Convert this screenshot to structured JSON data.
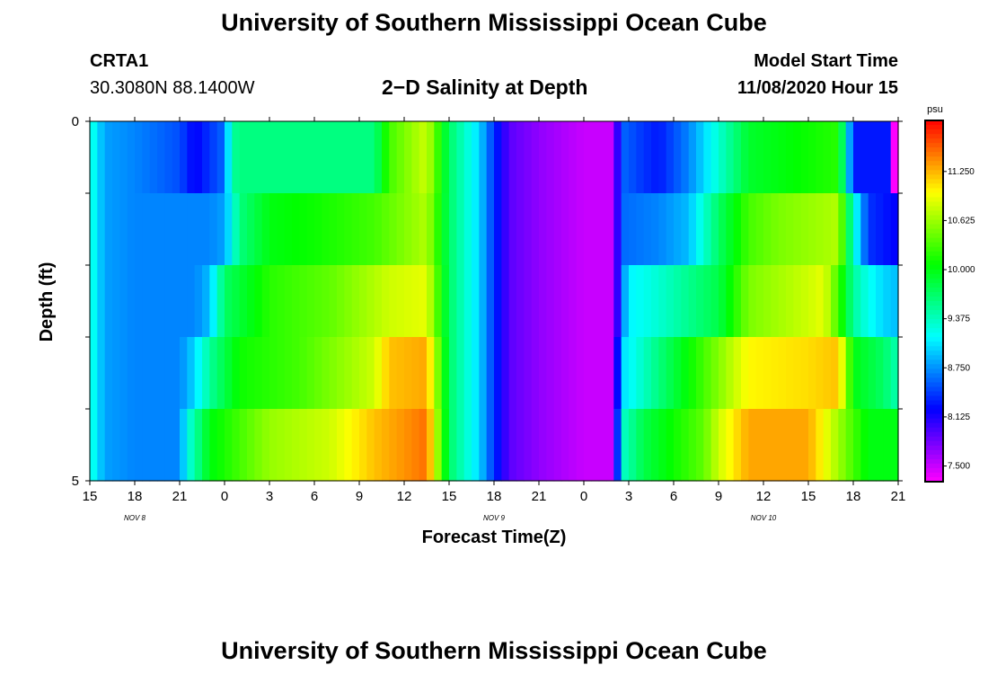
{
  "page": {
    "title_top": "University of Southern Mississippi Ocean Cube",
    "title_bottom": "University of Southern Mississippi Ocean Cube",
    "station": {
      "id": "CRTA1",
      "coords": "30.3080N 88.1400W"
    },
    "model": {
      "label": "Model Start Time",
      "start": "11/08/2020 Hour 15"
    }
  },
  "chart_data": {
    "type": "heatmap",
    "title": "2−D Salinity at Depth",
    "xlabel": "Forecast Time(Z)",
    "ylabel": "Depth (ft)",
    "x_ticks": [
      "15",
      "18",
      "21",
      "0",
      "3",
      "6",
      "9",
      "12",
      "15",
      "18",
      "21",
      "0",
      "3",
      "6",
      "9",
      "12",
      "15",
      "18",
      "21"
    ],
    "date_labels": [
      "NOV  8",
      "NOV  9",
      "NOV  10"
    ],
    "y_ticks": [
      "0",
      "5"
    ],
    "ylim": [
      0,
      5
    ],
    "x_range_hours": [
      0,
      54
    ],
    "colorbar": {
      "unit": "psu",
      "range": [
        7.3,
        11.9
      ],
      "ticks": [
        "7.500",
        "8.125",
        "8.750",
        "9.375",
        "10.000",
        "10.625",
        "11.250"
      ]
    },
    "depth_rows": [
      {
        "label": "0-1 ft",
        "keys": [
          [
            0,
            9.3
          ],
          [
            1,
            8.8
          ],
          [
            3,
            8.7
          ],
          [
            6,
            8.5
          ],
          [
            7,
            8.2
          ],
          [
            9,
            8.6
          ],
          [
            9.5,
            9.5
          ],
          [
            10,
            9.6
          ],
          [
            19,
            9.6
          ],
          [
            20,
            10.3
          ],
          [
            22.5,
            10.8
          ],
          [
            24,
            9.7
          ],
          [
            26,
            9.0
          ],
          [
            27,
            8.4
          ],
          [
            28,
            7.9
          ],
          [
            30,
            7.7
          ],
          [
            33,
            7.5
          ],
          [
            35,
            7.5
          ],
          [
            35,
            7.5
          ],
          [
            35.5,
            8.6
          ],
          [
            37,
            8.4
          ],
          [
            38,
            8.3
          ],
          [
            40,
            8.7
          ],
          [
            42,
            9.3
          ],
          [
            44,
            9.9
          ],
          [
            46,
            10.0
          ],
          [
            50,
            10.2
          ],
          [
            50.5,
            9.3
          ],
          [
            51,
            8.3
          ],
          [
            53.5,
            8.3
          ],
          [
            53.6,
            7.3
          ],
          [
            54,
            7.3
          ]
        ]
      },
      {
        "label": "1-2 ft",
        "keys": [
          [
            0,
            9.3
          ],
          [
            1,
            8.8
          ],
          [
            3,
            8.7
          ],
          [
            8,
            8.7
          ],
          [
            9,
            8.8
          ],
          [
            10,
            9.6
          ],
          [
            12,
            10.0
          ],
          [
            15,
            10.1
          ],
          [
            19,
            10.3
          ],
          [
            22.5,
            10.7
          ],
          [
            24,
            9.7
          ],
          [
            26,
            9.0
          ],
          [
            27,
            8.4
          ],
          [
            28,
            7.9
          ],
          [
            30,
            7.7
          ],
          [
            33,
            7.5
          ],
          [
            35,
            7.5
          ],
          [
            35,
            7.5
          ],
          [
            35.5,
            8.6
          ],
          [
            38,
            8.7
          ],
          [
            40,
            8.9
          ],
          [
            42,
            9.7
          ],
          [
            44,
            10.3
          ],
          [
            46,
            10.5
          ],
          [
            50,
            10.7
          ],
          [
            51,
            9.3
          ],
          [
            52,
            8.4
          ],
          [
            54,
            8.2
          ]
        ]
      },
      {
        "label": "2-3 ft",
        "keys": [
          [
            0,
            9.3
          ],
          [
            1,
            8.8
          ],
          [
            3,
            8.7
          ],
          [
            7,
            8.7
          ],
          [
            8,
            8.9
          ],
          [
            9,
            9.7
          ],
          [
            12,
            10.2
          ],
          [
            16,
            10.4
          ],
          [
            20,
            10.8
          ],
          [
            22.5,
            10.9
          ],
          [
            24,
            9.7
          ],
          [
            26,
            9.0
          ],
          [
            27,
            8.4
          ],
          [
            28,
            7.9
          ],
          [
            30,
            7.7
          ],
          [
            33,
            7.5
          ],
          [
            35,
            7.5
          ],
          [
            35,
            7.5
          ],
          [
            35.5,
            8.6
          ],
          [
            36,
            9.1
          ],
          [
            38,
            9.3
          ],
          [
            42,
            9.8
          ],
          [
            44,
            10.5
          ],
          [
            48,
            10.8
          ],
          [
            49,
            10.9
          ],
          [
            50,
            10.3
          ],
          [
            51,
            9.5
          ],
          [
            52,
            9.2
          ],
          [
            53,
            9.0
          ],
          [
            54,
            8.9
          ]
        ]
      },
      {
        "label": "3-4 ft",
        "keys": [
          [
            0,
            9.3
          ],
          [
            1,
            8.8
          ],
          [
            3,
            8.7
          ],
          [
            6,
            8.7
          ],
          [
            7,
            9.0
          ],
          [
            8,
            9.5
          ],
          [
            10,
            10.1
          ],
          [
            14,
            10.3
          ],
          [
            19,
            10.8
          ],
          [
            20,
            11.2
          ],
          [
            22.5,
            11.3
          ],
          [
            24,
            9.7
          ],
          [
            26,
            9.0
          ],
          [
            27,
            8.4
          ],
          [
            28,
            7.9
          ],
          [
            30,
            7.7
          ],
          [
            33,
            7.5
          ],
          [
            35,
            7.5
          ],
          [
            35,
            7.5
          ],
          [
            35.5,
            9.0
          ],
          [
            38,
            9.6
          ],
          [
            41,
            10.3
          ],
          [
            44,
            11.0
          ],
          [
            48,
            11.1
          ],
          [
            50,
            11.2
          ],
          [
            51,
            10.0
          ],
          [
            53,
            9.7
          ],
          [
            54,
            9.4
          ]
        ]
      },
      {
        "label": "4-5 ft",
        "keys": [
          [
            0,
            9.3
          ],
          [
            1,
            8.8
          ],
          [
            3,
            8.7
          ],
          [
            6,
            8.7
          ],
          [
            6.5,
            9.2
          ],
          [
            8,
            10.0
          ],
          [
            12,
            10.6
          ],
          [
            16,
            10.8
          ],
          [
            19,
            11.2
          ],
          [
            22.5,
            11.5
          ],
          [
            24,
            9.7
          ],
          [
            26,
            9.0
          ],
          [
            27,
            8.4
          ],
          [
            28,
            7.9
          ],
          [
            30,
            7.7
          ],
          [
            33,
            7.5
          ],
          [
            35,
            7.5
          ],
          [
            35,
            7.5
          ],
          [
            35.5,
            9.3
          ],
          [
            37,
            9.8
          ],
          [
            41,
            10.4
          ],
          [
            42,
            10.8
          ],
          [
            44,
            11.3
          ],
          [
            48,
            11.3
          ],
          [
            51,
            10.3
          ],
          [
            52,
            10.0
          ],
          [
            54,
            10.0
          ]
        ]
      }
    ]
  }
}
